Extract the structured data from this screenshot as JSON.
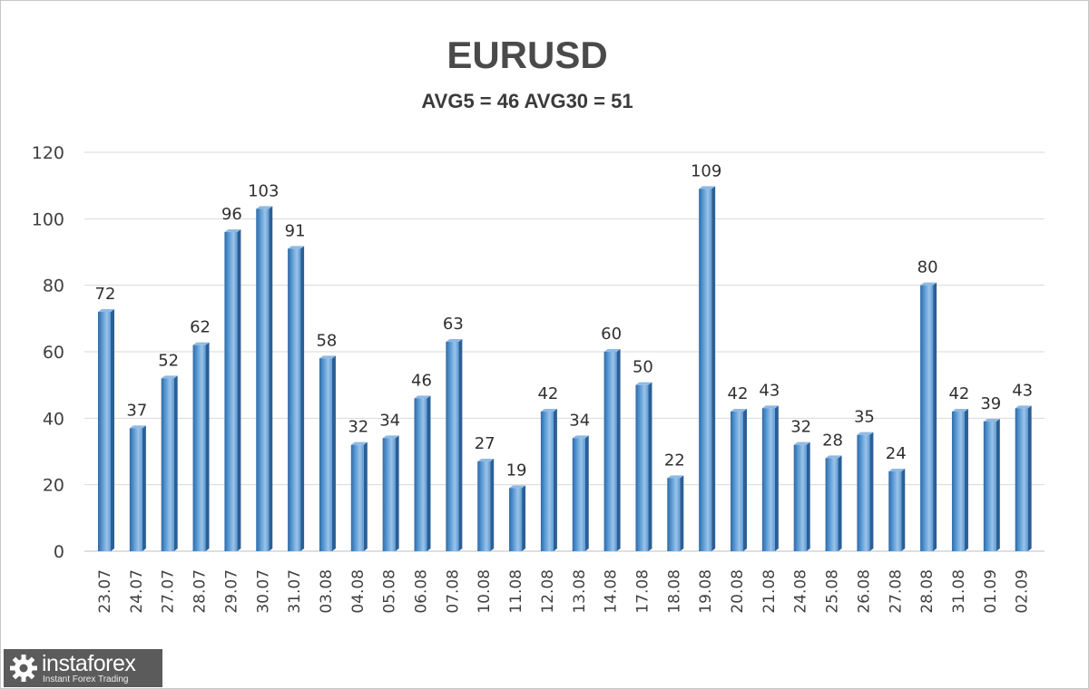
{
  "logo": {
    "icon": "gear-icon",
    "brand": "instaforex",
    "tagline": "Instant Forex Trading"
  },
  "colors": {
    "bar": "#5b9bd5",
    "bar_dark": "#2e6aa8",
    "grid": "#d9d9d9",
    "text": "#404040"
  },
  "chart_data": {
    "type": "bar",
    "title": "EURUSD",
    "subtitle": "AVG5 = 46 AVG30 = 51",
    "categories": [
      "23.07",
      "24.07",
      "27.07",
      "28.07",
      "29.07",
      "30.07",
      "31.07",
      "03.08",
      "04.08",
      "05.08",
      "06.08",
      "07.08",
      "10.08",
      "11.08",
      "12.08",
      "13.08",
      "14.08",
      "17.08",
      "18.08",
      "19.08",
      "20.08",
      "21.08",
      "24.08",
      "25.08",
      "26.08",
      "27.08",
      "28.08",
      "31.08",
      "01.09",
      "02.09"
    ],
    "values": [
      72,
      37,
      52,
      62,
      96,
      103,
      91,
      58,
      32,
      34,
      46,
      63,
      27,
      19,
      42,
      34,
      60,
      50,
      22,
      109,
      42,
      43,
      32,
      28,
      35,
      24,
      80,
      42,
      39,
      43
    ],
    "ylim": [
      0,
      120
    ],
    "yticks": [
      "0",
      "20",
      "40",
      "60",
      "80",
      "100",
      "120"
    ],
    "grid": true,
    "data_labels": true,
    "xlabel": "",
    "ylabel": ""
  }
}
